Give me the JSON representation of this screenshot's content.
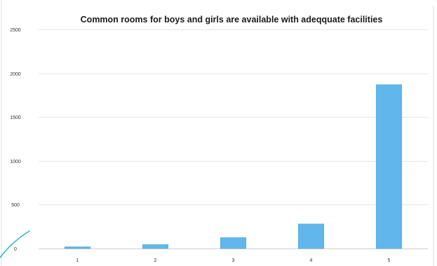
{
  "chart_data": {
    "type": "bar",
    "title": "Common rooms for boys and girls are available with adeqquate facilities",
    "xlabel": "",
    "ylabel": "",
    "categories": [
      "1",
      "2",
      "3",
      "4",
      "5"
    ],
    "values": [
      20,
      45,
      125,
      280,
      1870
    ],
    "ylim": [
      0,
      2500
    ],
    "yticks": [
      0,
      500,
      1000,
      1500,
      2000,
      2500
    ],
    "grid": true,
    "legend": "none",
    "bar_color": "#62b7ea",
    "bar_edge_color": "#4aa5de"
  }
}
